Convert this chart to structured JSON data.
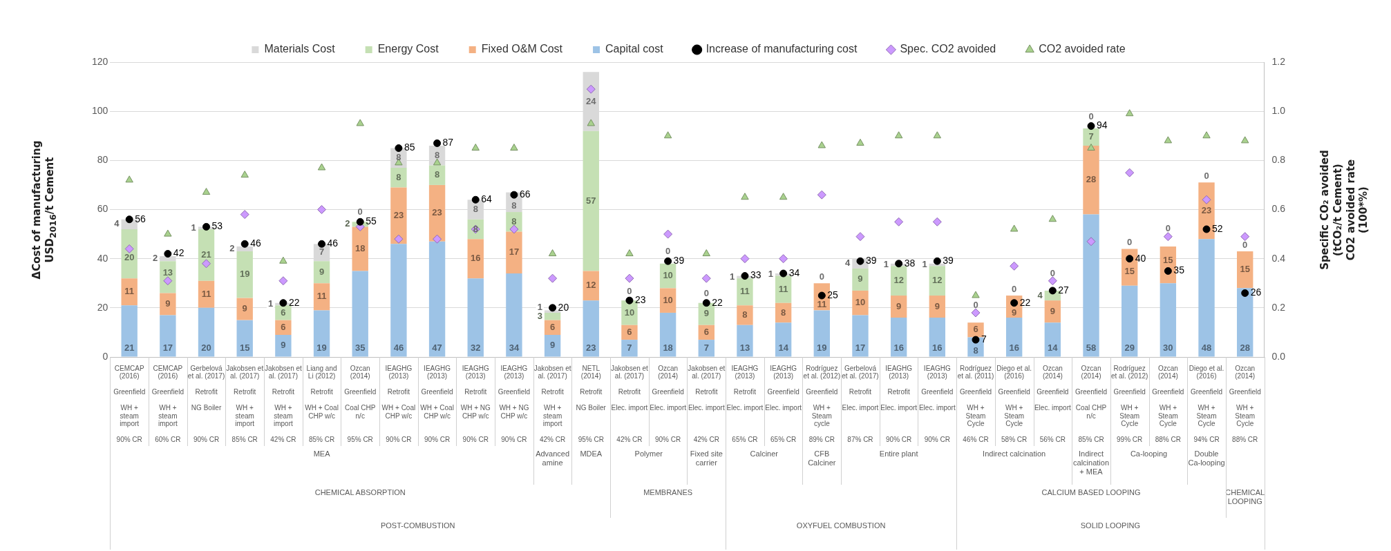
{
  "chart_data": {
    "type": "bar",
    "stacked": true,
    "legend": "top",
    "grid": "y",
    "ylabel": "ΔCost of manufacturing\nUSD$_{2016}$/t Cement",
    "y2label": "Specific CO₂ avoided\n(tCO₂/t Cement)\nCO2 avoided rate\n(100*%)",
    "ylim": [
      0,
      120
    ],
    "yticks": [
      0,
      20,
      40,
      60,
      80,
      100,
      120
    ],
    "y2lim": [
      0,
      1.2
    ],
    "y2ticks": [
      {
        "value": 0,
        "label": "0.0"
      },
      {
        "value": 0.2,
        "label": "0.2"
      },
      {
        "value": 0.4,
        "label": "0.4"
      },
      {
        "value": 0.6,
        "label": "0.6"
      },
      {
        "value": 0.8,
        "label": "0.8"
      },
      {
        "value": 1,
        "label": "1.0"
      },
      {
        "value": 1.2,
        "label": "1.2"
      }
    ],
    "categories": [
      "CEMCAP (2016)\nGreenfield\nWH + steam import\n90% CR",
      "CEMCAP (2016)\nGreenfield\nWH + steam import\n60% CR",
      "Gerbelová et al. (2017)\nRetrofit\nNG Boiler\n90% CR",
      "Jakobsen et al. (2017)\nRetrofit\nWH + steam import\n85% CR",
      "Jakobsen et al. (2017)\nRetrofit\nWH + steam import\n42% CR",
      "Liang and Li (2012)\nRetrofit\nWH + Coal CHP w/c\n85% CR",
      "Ozcan (2014)\nGreenfield\nCoal CHP n/c\n95% CR",
      "IEAGHG (2013)\nRetrofit\nWH + Coal CHP w/c\n90% CR",
      "IEAGHG (2013)\nGreenfield\nWH + Coal CHP w/c\n90% CR",
      "IEAGHG (2013)\nRetrofit\nWH + NG CHP w/c\n90% CR",
      "IEAGHG (2013)\nGreenfield\nWH + NG CHP w/c\n90% CR",
      "Jakobsen et al. (2017)\nRetrofit\nWH + steam import\n42% CR",
      "NETL (2014)\nRetrofit\nNG Boiler\n95% CR",
      "Jakobsen et al. (2017)\nRetrofit\nElec. import\n42% CR",
      "Ozcan (2014)\nGreenfield\nElec. import\n90% CR",
      "Jakobsen et al. (2017)\nRetrofit\nElec. import\n42% CR",
      "IEAGHG (2013)\nRetrofit\nElec. import\n65% CR",
      "IEAGHG (2013)\nGreenfield\nElec. import\n65% CR",
      "Rodríguez et al. (2012)\nGreenfield\nWH + Steam cycle\n89% CR",
      "Gerbelová et al. (2017)\nRetrofit\nElec. import\n87% CR",
      "IEAGHG (2013)\nRetrofit\nElec. import\n90% CR",
      "IEAGHG (2013)\nGreenfield\nElec. import\n90% CR",
      "Rodríguez et al. (2011)\nGreenfield\nWH + Steam Cycle\n46% CR",
      "Diego et al. (2016)\nGreenfield\nWH + Steam Cycle\n58% CR",
      "Ozcan (2014)\nGreenfield\nElec. import\n56% CR",
      "Ozcan (2014)\nGreenfield\nCoal CHP n/c\n85% CR",
      "Rodríguez et al. (2012)\nGreenfield\nWH + Steam Cycle\n99% CR",
      "Ozcan (2014)\nGreenfield\nWH + Steam Cycle\n88% CR",
      "Diego et al. (2016)\nGreenfield\nWH + Steam Cycle\n94% CR",
      "Ozcan (2014)\nGreenfield\nWH + Steam Cycle\n88% CR"
    ],
    "series": [
      {
        "name": "Capital cost",
        "color": "#9dc3e6",
        "values": [
          21,
          17,
          20,
          15,
          9,
          19,
          35,
          46,
          47,
          32,
          34,
          9,
          23,
          7,
          18,
          7,
          13,
          14,
          19,
          17,
          16,
          16,
          8,
          16,
          14,
          58,
          29,
          30,
          48,
          28
        ],
        "value_labels": [
          "21",
          "17",
          "20",
          "15",
          "9",
          "19",
          "35",
          "46",
          "47",
          "32",
          "34",
          "9",
          "23",
          "7",
          "18",
          "7",
          "13",
          "14",
          "19",
          "17",
          "16",
          "16",
          "8",
          "16",
          "14",
          "58",
          "29",
          "30",
          "48",
          "28"
        ]
      },
      {
        "name": "Fixed O&M Cost",
        "color": "#f4b183",
        "values": [
          11,
          9,
          11,
          9,
          6,
          11,
          18,
          23,
          23,
          16,
          17,
          6,
          12,
          6,
          10,
          6,
          8,
          8,
          11,
          10,
          9,
          9,
          6,
          9,
          9,
          28,
          15,
          15,
          23,
          15
        ],
        "value_labels": [
          "11",
          "9",
          "11",
          "9",
          "6",
          "11",
          "18",
          "23",
          "23",
          "16",
          "17",
          "6",
          "12",
          "6",
          "10",
          "6",
          "8",
          "8",
          "11",
          "10",
          "9",
          "9",
          "6",
          "9",
          "9",
          "28",
          "15",
          "15",
          "23",
          "15"
        ]
      },
      {
        "name": "Energy Cost",
        "color": "#c5e0b4",
        "values": [
          20,
          13,
          21,
          19,
          6,
          9,
          2,
          8,
          8,
          8,
          8,
          3,
          57,
          10,
          10,
          9,
          11,
          11,
          null,
          9,
          12,
          12,
          null,
          null,
          4,
          7,
          null,
          null,
          null,
          null
        ],
        "value_labels": [
          "20",
          "13",
          "21",
          "19",
          "6",
          "9",
          "2",
          "8",
          "8",
          "8",
          "8",
          "3",
          "57",
          "10",
          "10",
          "9",
          "11",
          "11",
          null,
          "9",
          "12",
          "12",
          null,
          null,
          "4",
          "7",
          null,
          null,
          null,
          null
        ]
      },
      {
        "name": "Materials Cost",
        "color": "#d9d9d9",
        "values": [
          4,
          2,
          1,
          2,
          1,
          7,
          0,
          8,
          8,
          8,
          8,
          1,
          24,
          0,
          0,
          0,
          1,
          1,
          0,
          4,
          1,
          1,
          0,
          0,
          0,
          0,
          0,
          0,
          0,
          0
        ],
        "value_labels": [
          "4",
          "2",
          "1",
          "2",
          "1",
          "7",
          "0",
          "8",
          "8",
          "8",
          "8",
          "1",
          "24",
          "0",
          "0",
          "0",
          "1",
          "1",
          "0",
          "4",
          "1",
          "1",
          "0",
          "0",
          "0",
          "0",
          "0",
          "0",
          "0",
          "0"
        ]
      },
      {
        "name": "Increase of manufacturing cost",
        "type": "scatter",
        "marker": "circle",
        "color": "#000000",
        "values": [
          56,
          42,
          53,
          46,
          22,
          46,
          55,
          85,
          87,
          64,
          66,
          20,
          null,
          23,
          39,
          22,
          33,
          34,
          25,
          39,
          38,
          39,
          7,
          22,
          27,
          94,
          40,
          35,
          52,
          26
        ],
        "value_labels": [
          "56",
          "42",
          "53",
          "46",
          "22",
          "46",
          "55",
          "85",
          "87",
          "64",
          "66",
          "20",
          null,
          "23",
          "39",
          "22",
          "33",
          "34",
          "25",
          "39",
          "38",
          "39",
          "7",
          "22",
          "27",
          "94",
          "40",
          "35",
          "52",
          "26"
        ]
      },
      {
        "name": "Spec. CO2 avoided",
        "type": "scatter",
        "marker": "diamond",
        "axis": "y2",
        "color": "#cc99ff",
        "values": [
          0.44,
          0.31,
          0.38,
          0.58,
          0.31,
          0.6,
          0.53,
          0.48,
          0.48,
          0.52,
          0.52,
          0.32,
          1.09,
          0.32,
          0.5,
          0.32,
          0.4,
          0.4,
          0.66,
          0.49,
          0.55,
          0.55,
          0.18,
          0.37,
          0.31,
          0.47,
          0.75,
          0.49,
          0.64,
          0.49
        ]
      },
      {
        "name": "CO2 avoided rate",
        "type": "scatter",
        "marker": "triangle",
        "axis": "y2",
        "color": "#a9d18e",
        "values": [
          0.72,
          0.5,
          0.67,
          0.74,
          0.39,
          0.77,
          0.95,
          0.79,
          0.79,
          0.85,
          0.85,
          0.42,
          0.95,
          0.42,
          0.9,
          0.42,
          0.65,
          0.65,
          0.86,
          0.87,
          0.9,
          0.9,
          0.25,
          0.52,
          0.56,
          0.85,
          0.99,
          0.88,
          0.9,
          0.88
        ]
      }
    ],
    "annotations": [
      "MEA",
      "Advanced amine",
      "MDEA",
      "Polymer",
      "Fixed site carrier",
      "Calciner",
      "CFB Calciner",
      "Entire plant",
      "Indirect calcination",
      "Indirect calcination + MEA",
      "Ca-looping",
      "Double Ca-looping",
      "CHEMICAL ABSORPTION",
      "MEMBRANES",
      "CALCIUM BASED LOOPING",
      "CHEMICAL LOOPING",
      "POST-COMBUSTION",
      "OXYFUEL COMBUSTION",
      "SOLID LOOPING"
    ]
  }
}
